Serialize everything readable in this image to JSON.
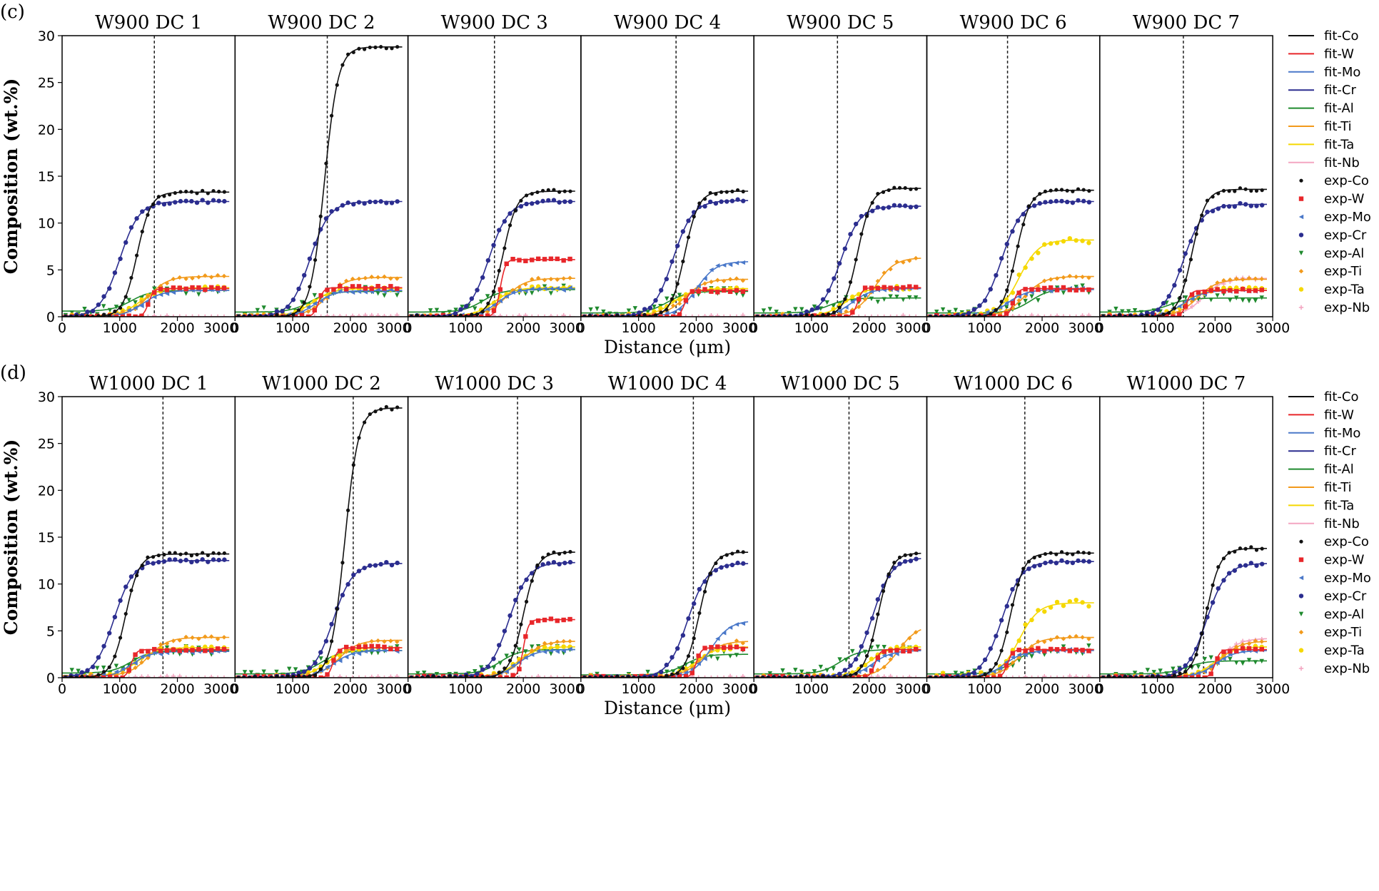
{
  "chart_data": [
    {
      "type": "line",
      "panel_label": "(c)",
      "ylabel": "Composition (wt.%)",
      "xlabel": "Distance (μm)",
      "ylim": [
        0,
        30
      ],
      "yticks": [
        "0",
        "5",
        "10",
        "15",
        "20",
        "25",
        "30"
      ],
      "xlim": [
        0,
        3000
      ],
      "xticks": [
        "0",
        "1000",
        "2000",
        "3000"
      ],
      "subplots": [
        {
          "title": "W900 DC 1",
          "interface": 1600,
          "left": {
            "Co": 0,
            "W": 0,
            "Mo": 0,
            "Cr": 0,
            "Al": 0.6,
            "Ti": 0.1,
            "Ta": 0.1,
            "Nb": 0
          },
          "right": {
            "Co": 13.3,
            "W": 3.0,
            "Mo": 2.8,
            "Cr": 12.3,
            "Al": 2.8,
            "Ti": 4.3,
            "Ta": 3.1,
            "Nb": 0
          },
          "center": {
            "Co": 1300,
            "W": 1500,
            "Mo": 1400,
            "Cr": 1000,
            "Al": 1200,
            "Ti": 1500,
            "Ta": 1350,
            "Nb": 1500
          }
        },
        {
          "title": "W900 DC 2",
          "interface": 1600,
          "left": {
            "Co": 0,
            "W": 0,
            "Mo": 0,
            "Cr": 0,
            "Al": 0.5,
            "Ti": 0.1,
            "Ta": 0.1,
            "Nb": 0
          },
          "right": {
            "Co": 28.8,
            "W": 3.1,
            "Mo": 2.8,
            "Cr": 12.3,
            "Al": 2.7,
            "Ti": 4.2,
            "Ta": 3.0,
            "Nb": 0
          },
          "center": {
            "Co": 1550,
            "W": 1450,
            "Mo": 1400,
            "Cr": 1300,
            "Al": 1300,
            "Ti": 1600,
            "Ta": 1350,
            "Nb": 1500
          }
        },
        {
          "title": "W900 DC 3",
          "interface": 1500,
          "left": {
            "Co": 0,
            "W": 0,
            "Mo": 0,
            "Cr": 0,
            "Al": 0.5,
            "Ti": 0.1,
            "Ta": 0.1,
            "Nb": 0
          },
          "right": {
            "Co": 13.4,
            "W": 6.1,
            "Mo": 3.0,
            "Cr": 12.3,
            "Al": 2.9,
            "Ti": 4.1,
            "Ta": 3.1,
            "Nb": 0
          },
          "center": {
            "Co": 1650,
            "W": 1600,
            "Mo": 1550,
            "Cr": 1400,
            "Al": 1300,
            "Ti": 1700,
            "Ta": 1500,
            "Nb": 1500
          }
        },
        {
          "title": "W900 DC 4",
          "interface": 1650,
          "left": {
            "Co": 0,
            "W": 0,
            "Mo": 0,
            "Cr": 0,
            "Al": 0.4,
            "Ti": 0.1,
            "Ta": 0.1,
            "Nb": 0
          },
          "right": {
            "Co": 13.4,
            "W": 2.8,
            "Mo": 5.9,
            "Cr": 12.4,
            "Al": 2.7,
            "Ti": 4.0,
            "Ta": 3.0,
            "Nb": 0
          },
          "center": {
            "Co": 1800,
            "W": 1800,
            "Mo": 2000,
            "Cr": 1600,
            "Al": 1500,
            "Ti": 1800,
            "Ta": 1600,
            "Nb": 1500
          }
        },
        {
          "title": "W900 DC 5",
          "interface": 1450,
          "left": {
            "Co": 0,
            "W": 0,
            "Mo": 0,
            "Cr": 0,
            "Al": 0.4,
            "Ti": 0.1,
            "Ta": 0.1,
            "Nb": 0
          },
          "right": {
            "Co": 13.7,
            "W": 3.1,
            "Mo": 3.0,
            "Cr": 11.8,
            "Al": 2.0,
            "Ti": 6.3,
            "Ta": 3.1,
            "Nb": 0
          },
          "center": {
            "Co": 1800,
            "W": 1800,
            "Mo": 1700,
            "Cr": 1500,
            "Al": 1300,
            "Ti": 2100,
            "Ta": 1600,
            "Nb": 1500
          }
        },
        {
          "title": "W900 DC 6",
          "interface": 1400,
          "left": {
            "Co": 0,
            "W": 0,
            "Mo": 0,
            "Cr": 0,
            "Al": 0.4,
            "Ti": 0.1,
            "Ta": 0.1,
            "Nb": 0
          },
          "right": {
            "Co": 13.5,
            "W": 3.0,
            "Mo": 2.9,
            "Cr": 12.3,
            "Al": 3.0,
            "Ti": 4.3,
            "Ta": 8.2,
            "Nb": 0
          },
          "center": {
            "Co": 1550,
            "W": 1500,
            "Mo": 1400,
            "Cr": 1300,
            "Al": 1800,
            "Ti": 1700,
            "Ta": 1600,
            "Nb": 1500
          }
        },
        {
          "title": "W900 DC 7",
          "interface": 1450,
          "left": {
            "Co": 0,
            "W": 0,
            "Mo": 0,
            "Cr": 0,
            "Al": 0.5,
            "Ti": 0.1,
            "Ta": 0.1,
            "Nb": 0.1
          },
          "right": {
            "Co": 13.6,
            "W": 2.8,
            "Mo": 2.8,
            "Cr": 12.0,
            "Al": 2.0,
            "Ti": 4.0,
            "Ta": 3.0,
            "Nb": 4.1
          },
          "center": {
            "Co": 1600,
            "W": 1500,
            "Mo": 1450,
            "Cr": 1450,
            "Al": 1200,
            "Ti": 1700,
            "Ta": 1500,
            "Nb": 1800
          }
        }
      ]
    },
    {
      "type": "line",
      "panel_label": "(d)",
      "ylabel": "Composition (wt.%)",
      "xlabel": "Distance (μm)",
      "ylim": [
        0,
        30
      ],
      "yticks": [
        "0",
        "5",
        "10",
        "15",
        "20",
        "25",
        "30"
      ],
      "xlim": [
        0,
        3000
      ],
      "xticks": [
        "0",
        "1000",
        "2000",
        "3000"
      ],
      "subplots": [
        {
          "title": "W1000 DC 1",
          "interface": 1750,
          "left": {
            "Co": 0,
            "W": 0,
            "Mo": 0,
            "Cr": 0,
            "Al": 0.5,
            "Ti": 0.2,
            "Ta": 0.2,
            "Nb": 0
          },
          "right": {
            "Co": 13.2,
            "W": 3.0,
            "Mo": 2.8,
            "Cr": 12.5,
            "Al": 2.9,
            "Ti": 4.3,
            "Ta": 3.2,
            "Nb": 0
          },
          "center": {
            "Co": 1100,
            "W": 1200,
            "Mo": 1200,
            "Cr": 900,
            "Al": 1200,
            "Ti": 1500,
            "Ta": 1300,
            "Nb": 1500
          }
        },
        {
          "title": "W1000 DC 2",
          "interface": 2050,
          "left": {
            "Co": 0,
            "W": 0,
            "Mo": 0,
            "Cr": 0,
            "Al": 0.4,
            "Ti": 0.1,
            "Ta": 0.1,
            "Nb": 0
          },
          "right": {
            "Co": 28.8,
            "W": 3.2,
            "Mo": 2.9,
            "Cr": 12.2,
            "Al": 2.9,
            "Ti": 4.0,
            "Ta": 3.2,
            "Nb": 0
          },
          "center": {
            "Co": 1900,
            "W": 1700,
            "Mo": 1700,
            "Cr": 1700,
            "Al": 1500,
            "Ti": 1800,
            "Ta": 1600,
            "Nb": 1500
          }
        },
        {
          "title": "W1000 DC 3",
          "interface": 1900,
          "left": {
            "Co": 0,
            "W": 0,
            "Mo": 0,
            "Cr": 0,
            "Al": 0.4,
            "Ti": 0.1,
            "Ta": 0.1,
            "Nb": 0
          },
          "right": {
            "Co": 13.4,
            "W": 6.2,
            "Mo": 3.0,
            "Cr": 12.3,
            "Al": 3.0,
            "Ti": 3.9,
            "Ta": 3.3,
            "Nb": 0
          },
          "center": {
            "Co": 2000,
            "W": 2000,
            "Mo": 1900,
            "Cr": 1750,
            "Al": 1600,
            "Ti": 2000,
            "Ta": 1900,
            "Nb": 1500
          }
        },
        {
          "title": "W1000 DC 4",
          "interface": 1950,
          "left": {
            "Co": 0,
            "W": 0,
            "Mo": 0,
            "Cr": 0,
            "Al": 0.3,
            "Ti": 0.1,
            "Ta": 0.1,
            "Nb": 0
          },
          "right": {
            "Co": 13.4,
            "W": 3.2,
            "Mo": 6.1,
            "Cr": 12.2,
            "Al": 2.5,
            "Ti": 3.9,
            "Ta": 3.3,
            "Nb": 0
          },
          "center": {
            "Co": 2050,
            "W": 2000,
            "Mo": 2250,
            "Cr": 1850,
            "Al": 1800,
            "Ti": 2100,
            "Ta": 2000,
            "Nb": 1500
          }
        },
        {
          "title": "W1000 DC 5",
          "interface": 1650,
          "left": {
            "Co": 0,
            "W": 0,
            "Mo": 0,
            "Cr": 0,
            "Al": 0.4,
            "Ti": 0.1,
            "Ta": 0.1,
            "Nb": 0
          },
          "right": {
            "Co": 13.3,
            "W": 3.0,
            "Mo": 2.9,
            "Cr": 12.8,
            "Al": 3.0,
            "Ti": 5.6,
            "Ta": 3.3,
            "Nb": 0
          },
          "center": {
            "Co": 2150,
            "W": 2100,
            "Mo": 2050,
            "Cr": 2050,
            "Al": 1500,
            "Ti": 2500,
            "Ta": 2000,
            "Nb": 1500
          }
        },
        {
          "title": "W1000 DC 6",
          "interface": 1700,
          "left": {
            "Co": 0,
            "W": 0,
            "Mo": 0,
            "Cr": 0,
            "Al": 0.4,
            "Ti": 0.1,
            "Ta": 0.1,
            "Nb": 0
          },
          "right": {
            "Co": 13.3,
            "W": 3.0,
            "Mo": 2.9,
            "Cr": 12.4,
            "Al": 3.0,
            "Ti": 4.3,
            "Ta": 8.0,
            "Nb": 0
          },
          "center": {
            "Co": 1450,
            "W": 1400,
            "Mo": 1350,
            "Cr": 1300,
            "Al": 1500,
            "Ti": 1600,
            "Ta": 1600,
            "Nb": 1500
          }
        },
        {
          "title": "W1000 DC 7",
          "interface": 1800,
          "left": {
            "Co": 0,
            "W": 0,
            "Mo": 0,
            "Cr": 0,
            "Al": 0.4,
            "Ti": 0.1,
            "Ta": 0.1,
            "Nb": 0.1
          },
          "right": {
            "Co": 13.8,
            "W": 3.0,
            "Mo": 2.9,
            "Cr": 12.2,
            "Al": 1.8,
            "Ti": 3.9,
            "Ta": 3.3,
            "Nb": 4.2
          },
          "center": {
            "Co": 1850,
            "W": 2000,
            "Mo": 2000,
            "Cr": 1850,
            "Al": 1500,
            "Ti": 2100,
            "Ta": 2000,
            "Nb": 2100
          }
        }
      ]
    }
  ],
  "series": [
    {
      "element": "Co",
      "color": "#111111",
      "marker": "dot"
    },
    {
      "element": "W",
      "color": "#e8262a",
      "marker": "square"
    },
    {
      "element": "Mo",
      "color": "#4a78c9",
      "marker": "triangle-left"
    },
    {
      "element": "Cr",
      "color": "#2b2d8f",
      "marker": "circle"
    },
    {
      "element": "Al",
      "color": "#1f8a2e",
      "marker": "triangle-down"
    },
    {
      "element": "Ti",
      "color": "#f29a1b",
      "marker": "diamond"
    },
    {
      "element": "Ta",
      "color": "#f5d800",
      "marker": "circle"
    },
    {
      "element": "Nb",
      "color": "#f4a6c1",
      "marker": "plus"
    }
  ],
  "legend": {
    "fit_labels": [
      "fit-Co",
      "fit-W",
      "fit-Mo",
      "fit-Cr",
      "fit-Al",
      "fit-Ti",
      "fit-Ta",
      "fit-Nb"
    ],
    "exp_labels": [
      "exp-Co",
      "exp-W",
      "exp-Mo",
      "exp-Cr",
      "exp-Al",
      "exp-Ti",
      "exp-Ta",
      "exp-Nb"
    ],
    "placement": "right"
  }
}
